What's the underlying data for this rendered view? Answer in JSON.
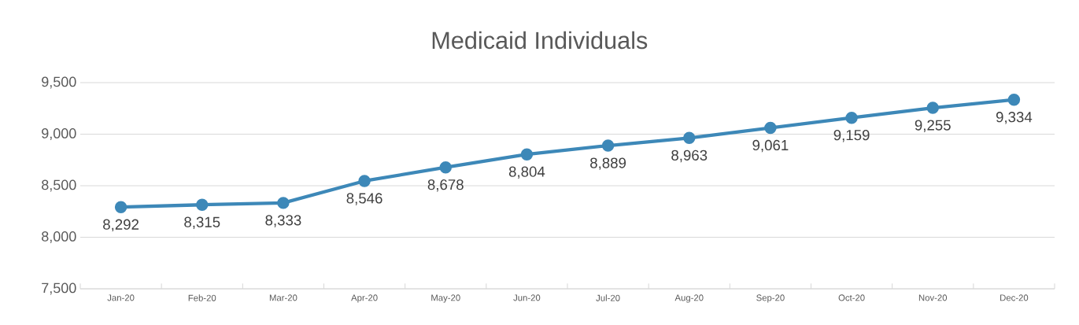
{
  "chart_data": {
    "type": "line",
    "title": "Medicaid Individuals",
    "categories": [
      "Jan-20",
      "Feb-20",
      "Mar-20",
      "Apr-20",
      "May-20",
      "Jun-20",
      "Jul-20",
      "Aug-20",
      "Sep-20",
      "Oct-20",
      "Nov-20",
      "Dec-20"
    ],
    "series": [
      {
        "color": "#3d88b8",
        "values": [
          8292,
          8315,
          8333,
          8546,
          8678,
          8804,
          8889,
          8963,
          9061,
          9159,
          9255,
          9334
        ],
        "value_labels": [
          "8,292",
          "8,315",
          "8,333",
          "8,546",
          "8,678",
          "8,804",
          "8,889",
          "8,963",
          "9,061",
          "9,159",
          "9,255",
          "9,334"
        ]
      }
    ],
    "ylim": [
      7500,
      9500
    ],
    "yticks": [
      {
        "value": 7500,
        "label": "7,500"
      },
      {
        "value": 8000,
        "label": "8,000"
      },
      {
        "value": 8500,
        "label": "8,500"
      },
      {
        "value": 9000,
        "label": "9,000"
      },
      {
        "value": 9500,
        "label": "9,500"
      }
    ],
    "grid": "y",
    "legend": false,
    "marker": "circle",
    "line_style": "solid"
  }
}
